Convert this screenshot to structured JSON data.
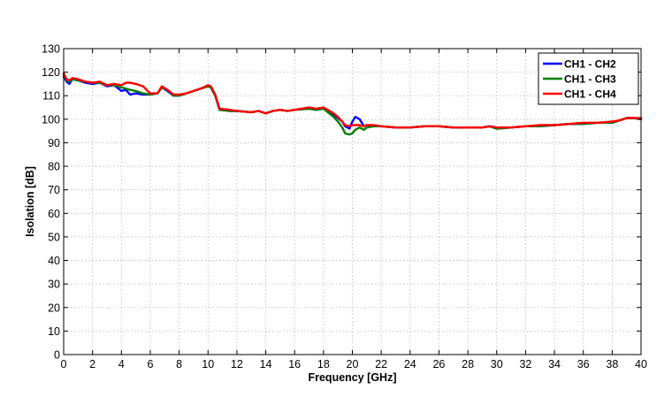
{
  "chart_data": {
    "type": "line",
    "title": "",
    "xlabel": "Frequency [GHz]",
    "ylabel": "Isolation [dB]",
    "xlim": [
      0,
      40
    ],
    "ylim": [
      0,
      130
    ],
    "xticks": [
      0,
      2,
      4,
      6,
      8,
      10,
      12,
      14,
      16,
      18,
      20,
      22,
      24,
      26,
      28,
      30,
      32,
      34,
      36,
      38,
      40
    ],
    "yticks": [
      0,
      10,
      20,
      30,
      40,
      50,
      60,
      70,
      80,
      90,
      100,
      110,
      120,
      130
    ],
    "grid": true,
    "legend_position": "top-right",
    "series": [
      {
        "name": "CH1 - CH2",
        "color": "#0000ff",
        "x": [
          0,
          0.2,
          0.4,
          0.6,
          1,
          1.5,
          2,
          2.5,
          3,
          3.5,
          4,
          4.3,
          4.6,
          5,
          5.5,
          6,
          6.5,
          6.8,
          7.2,
          7.6,
          8,
          8.5,
          9,
          9.5,
          10,
          10.2,
          10.5,
          10.8,
          11.5,
          12,
          13,
          13.5,
          14,
          14.5,
          15,
          15.5,
          16,
          17,
          17.5,
          18,
          18.3,
          18.7,
          19,
          19.3,
          19.5,
          19.8,
          20,
          20.2,
          20.5,
          20.8,
          21,
          21.5,
          22,
          23,
          24,
          25,
          26,
          27,
          28,
          29,
          29.5,
          30,
          31,
          32,
          33,
          34,
          35,
          36,
          37,
          38,
          38.5,
          39,
          39.5,
          40
        ],
        "y": [
          118,
          116,
          115,
          117,
          116.5,
          115.5,
          115,
          115.5,
          114,
          114.5,
          112,
          112.5,
          110.5,
          111,
          110.5,
          110.5,
          111,
          113.5,
          112,
          110,
          110,
          111,
          112,
          113,
          114,
          113.5,
          110,
          104,
          103.5,
          103.5,
          103,
          103.5,
          102.5,
          103.5,
          104,
          103.5,
          104,
          104.5,
          104,
          104.5,
          103.5,
          102,
          100.5,
          99,
          97,
          96,
          99,
          101,
          100,
          97,
          97.5,
          97,
          97,
          96.5,
          96.5,
          97,
          97,
          96.5,
          96.5,
          96.5,
          97,
          96,
          96.5,
          97,
          97,
          97.5,
          98,
          98,
          98.5,
          98.5,
          99.5,
          100.5,
          100.5,
          100
        ]
      },
      {
        "name": "CH1 - CH3",
        "color": "#008000",
        "x": [
          0,
          0.2,
          0.4,
          0.6,
          1,
          1.5,
          2,
          2.5,
          3,
          3.5,
          4,
          4.3,
          4.6,
          5,
          5.5,
          6,
          6.5,
          6.8,
          7.2,
          7.6,
          8,
          8.5,
          9,
          9.5,
          10,
          10.2,
          10.5,
          10.8,
          11.5,
          12,
          13,
          13.5,
          14,
          14.5,
          15,
          15.5,
          16,
          17,
          17.5,
          18,
          18.3,
          18.7,
          19,
          19.3,
          19.5,
          19.8,
          20,
          20.2,
          20.5,
          20.8,
          21,
          21.5,
          22,
          23,
          24,
          25,
          26,
          27,
          28,
          29,
          29.5,
          30,
          31,
          32,
          33,
          34,
          35,
          36,
          37,
          38,
          38.5,
          39,
          39.5,
          40
        ],
        "y": [
          119,
          116.5,
          116,
          117,
          116.5,
          116,
          115.5,
          115.5,
          114.5,
          114.5,
          113.5,
          113,
          112.5,
          112,
          111,
          110.5,
          111,
          113.5,
          112.5,
          110,
          110,
          111,
          112,
          113,
          114,
          113.5,
          110,
          104,
          103.5,
          103.5,
          103,
          103.5,
          102.5,
          103.5,
          104,
          103.5,
          104,
          104.5,
          104,
          104.5,
          103,
          101,
          99,
          96.5,
          94,
          93.5,
          94,
          95.5,
          96.5,
          95.5,
          96.5,
          97,
          97,
          96.5,
          96.5,
          97,
          97,
          96.5,
          96.5,
          96.5,
          97,
          96,
          96.5,
          97,
          97,
          97.5,
          98,
          98,
          98.5,
          98.5,
          99.5,
          100.5,
          100.5,
          100
        ]
      },
      {
        "name": "CH1 - CH4",
        "color": "#ff0000",
        "x": [
          0,
          0.2,
          0.4,
          0.6,
          1,
          1.5,
          2,
          2.5,
          3,
          3.5,
          4,
          4.3,
          4.6,
          5,
          5.5,
          6,
          6.5,
          6.8,
          7.2,
          7.6,
          8,
          8.5,
          9,
          9.5,
          10,
          10.2,
          10.5,
          10.8,
          11.5,
          12,
          13,
          13.5,
          14,
          14.5,
          15,
          15.5,
          16,
          17,
          17.5,
          18,
          18.3,
          18.7,
          19,
          19.3,
          19.5,
          19.8,
          20,
          20.2,
          20.5,
          20.8,
          21,
          21.5,
          22,
          23,
          24,
          25,
          26,
          27,
          28,
          29,
          29.5,
          30,
          31,
          32,
          33,
          34,
          35,
          36,
          37,
          38,
          38.5,
          39,
          39.5,
          40
        ],
        "y": [
          119.5,
          117,
          116.5,
          117.5,
          117,
          116,
          115.5,
          116,
          114.5,
          115,
          114.5,
          115.5,
          115.5,
          115,
          114,
          111,
          111,
          114,
          112.5,
          110.5,
          110.5,
          111,
          112,
          113,
          114.5,
          114,
          110.5,
          104.5,
          104,
          103.5,
          103,
          103.5,
          102.5,
          103.5,
          104,
          103.5,
          104,
          105,
          104.5,
          105,
          104,
          102.5,
          101,
          99,
          97.5,
          97,
          97.5,
          97.5,
          97.5,
          97,
          97.5,
          97.5,
          97,
          96.5,
          96.5,
          97,
          97,
          96.5,
          96.5,
          96.5,
          97,
          96.5,
          96.5,
          97,
          97.5,
          97.5,
          98,
          98.5,
          98.5,
          99,
          99.5,
          100.5,
          100.5,
          100.5
        ]
      }
    ]
  }
}
